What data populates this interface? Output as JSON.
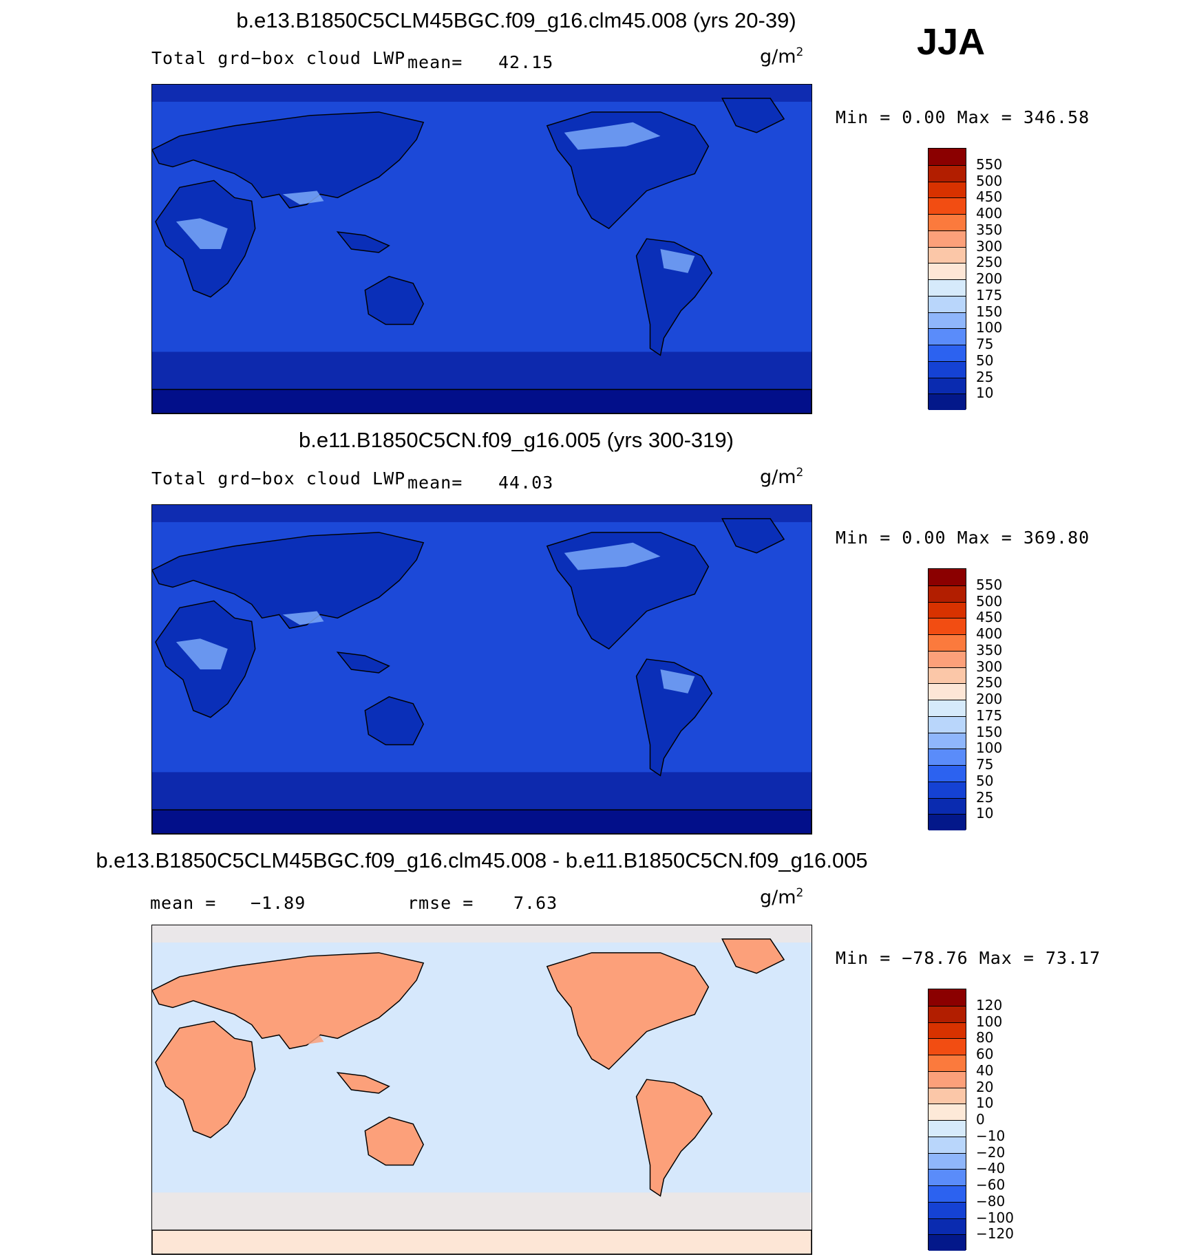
{
  "season": "JJA",
  "panels": [
    {
      "title": "b.e13.B1850C5CLM45BGC.f09_g16.clm45.008 (yrs 20-39)",
      "left_label": "Total grd−box cloud LWP",
      "mean_label": "mean=",
      "mean_value": "42.15",
      "units_base": "g/m",
      "units_exp": "2",
      "minmax": "Min =    0.00 Max =  346.58",
      "colorbar": {
        "labels": [
          "550",
          "500",
          "450",
          "400",
          "350",
          "300",
          "250",
          "200",
          "175",
          "150",
          "100",
          "75",
          "50",
          "25",
          "10"
        ],
        "colors": [
          "#8b0000",
          "#b21e00",
          "#d83200",
          "#f24d12",
          "#fb7a3d",
          "#fca07a",
          "#fbc7a8",
          "#fde6d6",
          "#d6eafb",
          "#b9d6fb",
          "#8fb6fb",
          "#5a8cfa",
          "#2c62f0",
          "#1542d4",
          "#0a2bb0",
          "#03188a"
        ]
      },
      "map": {
        "ocean": "#1c49d8",
        "polar": "#020f8a",
        "land_dark": "#0a2fb8",
        "land_light": "#7aa8f8",
        "highlight": "#f6cdb0"
      }
    },
    {
      "title": "b.e11.B1850C5CN.f09_g16.005 (yrs 300-319)",
      "left_label": "Total grd−box cloud LWP",
      "mean_label": "mean=",
      "mean_value": "44.03",
      "units_base": "g/m",
      "units_exp": "2",
      "minmax": "Min =    0.00 Max =  369.80",
      "colorbar": {
        "labels": [
          "550",
          "500",
          "450",
          "400",
          "350",
          "300",
          "250",
          "200",
          "175",
          "150",
          "100",
          "75",
          "50",
          "25",
          "10"
        ],
        "colors": [
          "#8b0000",
          "#b21e00",
          "#d83200",
          "#f24d12",
          "#fb7a3d",
          "#fca07a",
          "#fbc7a8",
          "#fde6d6",
          "#d6eafb",
          "#b9d6fb",
          "#8fb6fb",
          "#5a8cfa",
          "#2c62f0",
          "#1542d4",
          "#0a2bb0",
          "#03188a"
        ]
      },
      "map": {
        "ocean": "#1c49d8",
        "polar": "#020f8a",
        "land_dark": "#0a2fb8",
        "land_light": "#7aa8f8",
        "highlight": "#f6cdb0"
      }
    },
    {
      "title": "b.e13.B1850C5CLM45BGC.f09_g16.clm45.008 - b.e11.B1850C5CN.f09_g16.005",
      "mean_label": "mean =",
      "mean_value": "−1.89",
      "rmse_label": "rmse =",
      "rmse_value": "7.63",
      "units_base": "g/m",
      "units_exp": "2",
      "minmax": "Min = −78.76 Max =   73.17",
      "colorbar": {
        "labels": [
          "120",
          "100",
          "80",
          "60",
          "40",
          "20",
          "10",
          "0",
          "−10",
          "−20",
          "−40",
          "−60",
          "−80",
          "−100",
          "−120"
        ],
        "colors": [
          "#8b0000",
          "#b21e00",
          "#d83200",
          "#f24d12",
          "#fb7a3d",
          "#fca07a",
          "#fbc7a8",
          "#fde9d8",
          "#d6eafb",
          "#b9d6fb",
          "#8fb6fb",
          "#5a8cfa",
          "#2c62f0",
          "#1542d4",
          "#0a2bb0",
          "#03188a"
        ]
      },
      "map": {
        "ocean": "#d6e8fc",
        "polar": "#fde6d6",
        "land_dark": "#fca07a",
        "land_light": "#5a8cfa",
        "highlight": "#fbc7a8"
      }
    }
  ]
}
